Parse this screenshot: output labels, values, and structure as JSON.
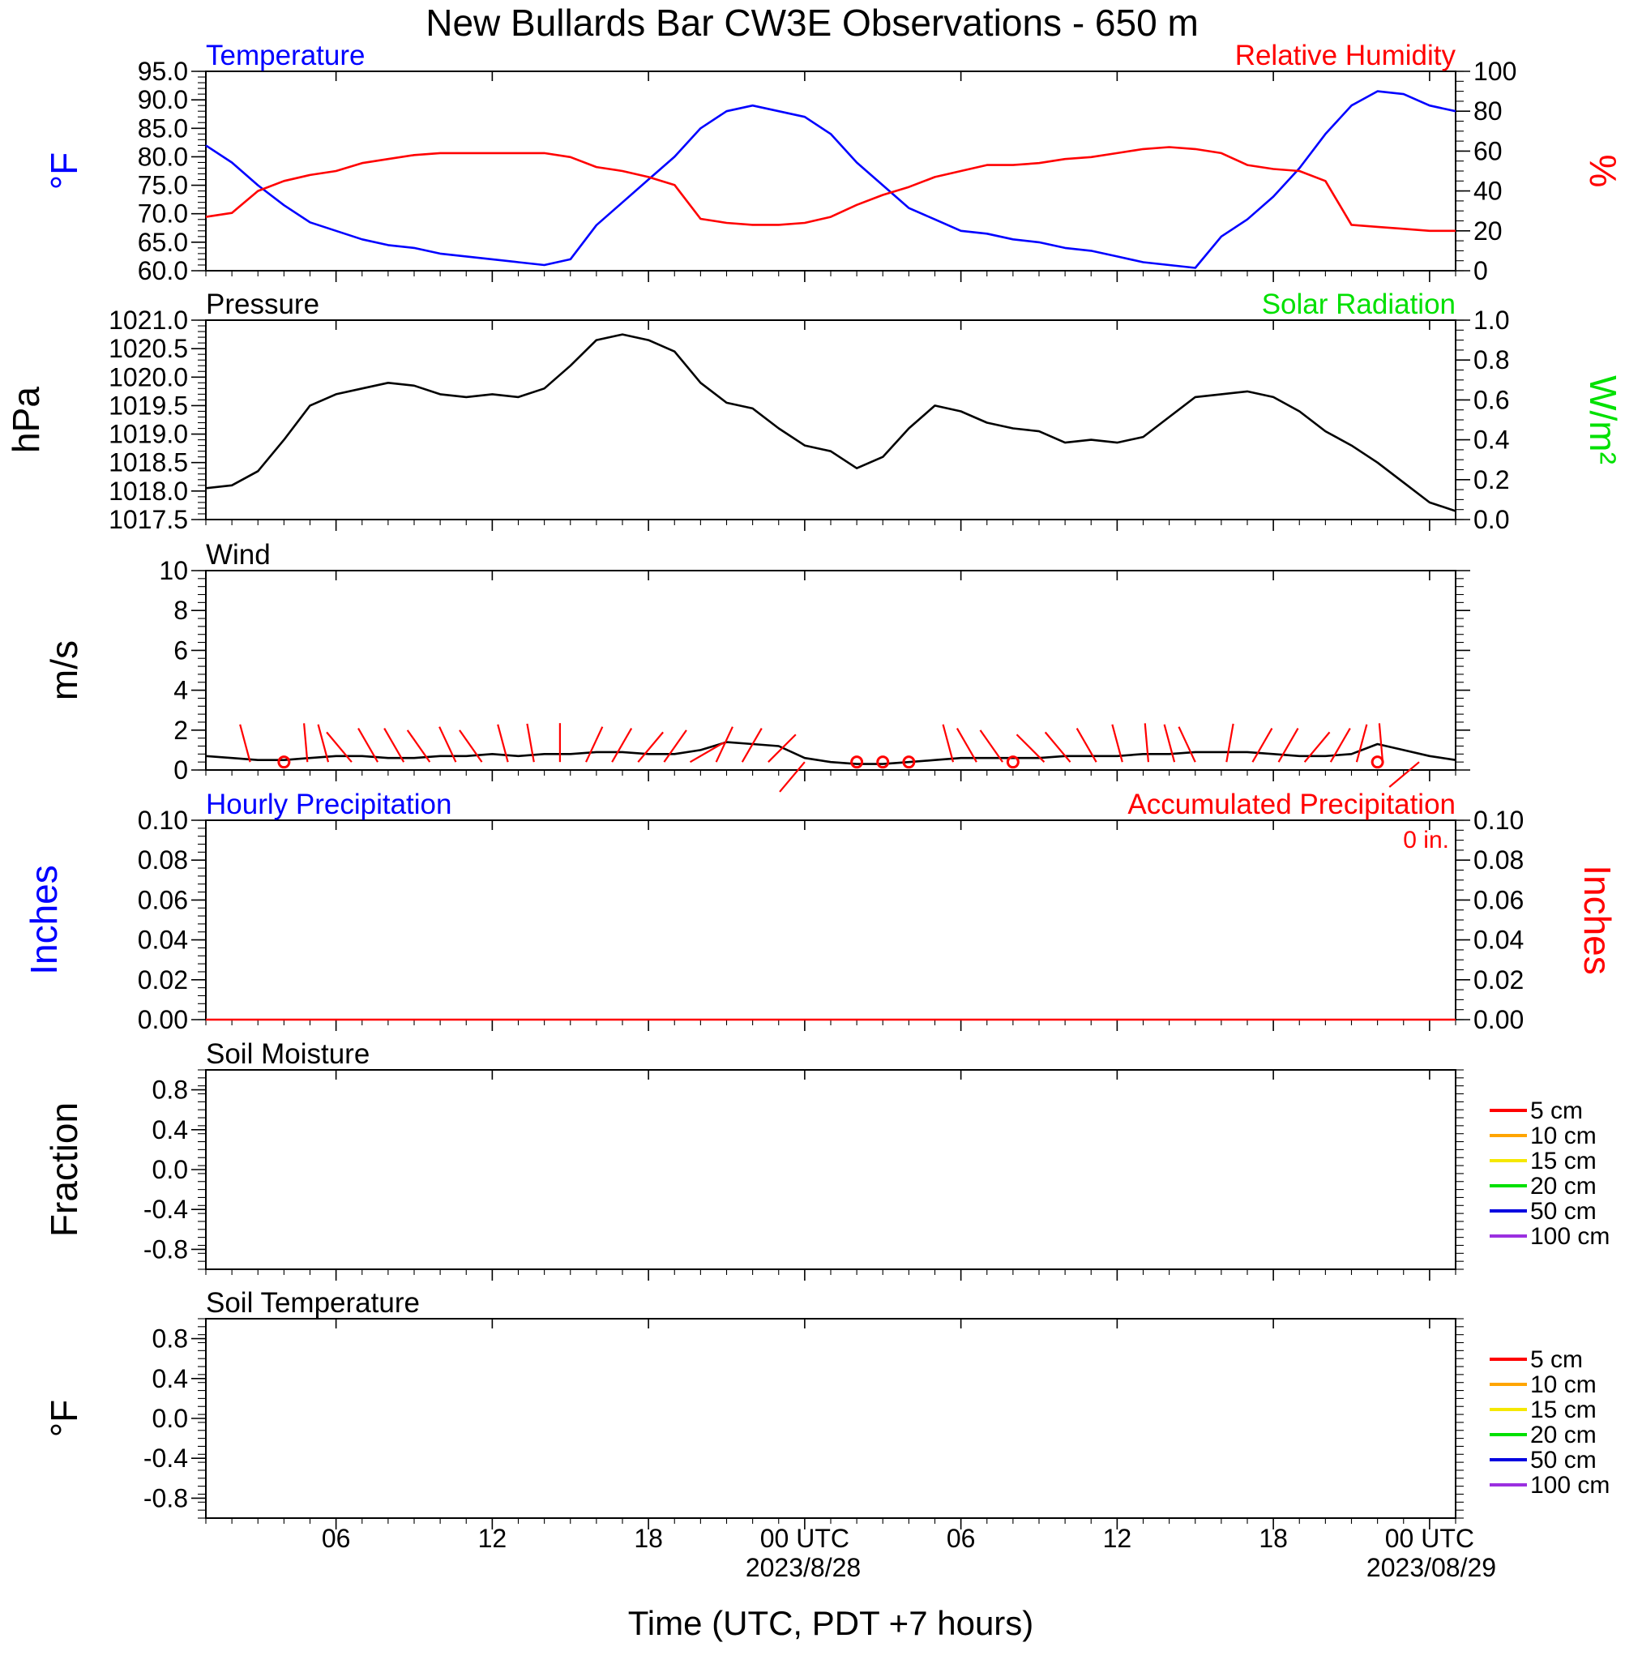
{
  "colors": {
    "blue": "#0000ff",
    "red": "#ff0000",
    "green": "#00e000",
    "black": "#000000",
    "soil": [
      "#ff0000",
      "#ffa500",
      "#f5e800",
      "#00e000",
      "#0000e0",
      "#9b30e0"
    ]
  },
  "header": {
    "title": "New Bullards Bar CW3E Observations - 650 m"
  },
  "footer": {
    "xlabel": "Time (UTC, PDT +7 hours)",
    "date1": "2023/8/28",
    "date2": "2023/08/29"
  },
  "time_axis": {
    "unit": "hours since 2023-08-27 01:00 UTC",
    "start": 1,
    "end": 49,
    "ticks": [
      {
        "t": 6,
        "label": "06"
      },
      {
        "t": 12,
        "label": "12"
      },
      {
        "t": 18,
        "label": "18"
      },
      {
        "t": 24,
        "label": "00 UTC"
      },
      {
        "t": 30,
        "label": "06"
      },
      {
        "t": 36,
        "label": "12"
      },
      {
        "t": 42,
        "label": "18"
      },
      {
        "t": 48,
        "label": "00 UTC"
      }
    ]
  },
  "chart_data": [
    {
      "type": "line",
      "title_left": "Temperature",
      "title_right": "Relative Humidity",
      "ylabel_left": "°F",
      "ylabel_right": "%",
      "ylim_left": [
        60,
        95
      ],
      "ylim_right": [
        0,
        100
      ],
      "yticks_left": [
        "60.0",
        "65.0",
        "70.0",
        "75.0",
        "80.0",
        "85.0",
        "90.0",
        "95.0"
      ],
      "yticks_right": [
        "0",
        "20",
        "40",
        "60",
        "80",
        "100"
      ],
      "series": [
        {
          "name": "Temperature",
          "axis": "left",
          "color": "#0000ff",
          "x": [
            1,
            2,
            3,
            4,
            5,
            6,
            7,
            8,
            9,
            10,
            11,
            12,
            13,
            14,
            15,
            16,
            17,
            18,
            19,
            20,
            21,
            22,
            23,
            24,
            25,
            26,
            27,
            28,
            29,
            30,
            31,
            32,
            33,
            34,
            35,
            36,
            37,
            38,
            39,
            40,
            41,
            42,
            43,
            44,
            45,
            46,
            47,
            48,
            49
          ],
          "y": [
            82.0,
            79.0,
            75.0,
            71.5,
            68.5,
            67.0,
            65.5,
            64.5,
            64.0,
            63.0,
            62.5,
            62.0,
            61.5,
            61.0,
            62.0,
            68.0,
            72.0,
            76.0,
            80.0,
            85.0,
            88.0,
            89.0,
            88.0,
            87.0,
            84.0,
            79.0,
            75.0,
            71.0,
            69.0,
            67.0,
            66.5,
            65.5,
            65.0,
            64.0,
            63.5,
            62.5,
            61.5,
            61.0,
            60.5,
            66.0,
            69.0,
            73.0,
            78.0,
            84.0,
            89.0,
            91.5,
            91.0,
            89.0,
            88.0
          ]
        },
        {
          "name": "Relative Humidity",
          "axis": "right",
          "color": "#ff0000",
          "x": [
            1,
            2,
            3,
            4,
            5,
            6,
            7,
            8,
            9,
            10,
            11,
            12,
            13,
            14,
            15,
            16,
            17,
            18,
            19,
            20,
            21,
            22,
            23,
            24,
            25,
            26,
            27,
            28,
            29,
            30,
            31,
            32,
            33,
            34,
            35,
            36,
            37,
            38,
            39,
            40,
            41,
            42,
            43,
            44,
            45,
            46,
            47,
            48,
            49
          ],
          "y": [
            27,
            29,
            40,
            45,
            48,
            50,
            54,
            56,
            58,
            59,
            59,
            59,
            59,
            59,
            57,
            52,
            50,
            47,
            43,
            26,
            24,
            23,
            23,
            24,
            27,
            33,
            38,
            42,
            47,
            50,
            53,
            53,
            54,
            56,
            57,
            59,
            61,
            62,
            61,
            59,
            53,
            51,
            50,
            45,
            23,
            22,
            21,
            20,
            20
          ]
        }
      ]
    },
    {
      "type": "line",
      "title_left": "Pressure",
      "title_right": "Solar Radiation",
      "ylabel_left": "hPa",
      "ylabel_right": "W/m²",
      "ylim_left": [
        1017.5,
        1021.0
      ],
      "ylim_right": [
        0.0,
        1.0
      ],
      "yticks_left": [
        "1017.5",
        "1018.0",
        "1018.5",
        "1019.0",
        "1019.5",
        "1020.0",
        "1020.5",
        "1021.0"
      ],
      "yticks_right": [
        "0.0",
        "0.2",
        "0.4",
        "0.6",
        "0.8",
        "1.0"
      ],
      "series": [
        {
          "name": "Pressure",
          "axis": "left",
          "color": "#000000",
          "x": [
            1,
            2,
            3,
            4,
            5,
            6,
            7,
            8,
            9,
            10,
            11,
            12,
            13,
            14,
            15,
            16,
            17,
            18,
            19,
            20,
            21,
            22,
            23,
            24,
            25,
            26,
            27,
            28,
            29,
            30,
            31,
            32,
            33,
            34,
            35,
            36,
            37,
            38,
            39,
            40,
            41,
            42,
            43,
            44,
            45,
            46,
            47,
            48,
            49
          ],
          "y": [
            1018.05,
            1018.1,
            1018.35,
            1018.9,
            1019.5,
            1019.7,
            1019.8,
            1019.9,
            1019.85,
            1019.7,
            1019.65,
            1019.7,
            1019.65,
            1019.8,
            1020.2,
            1020.65,
            1020.75,
            1020.65,
            1020.45,
            1019.9,
            1019.55,
            1019.45,
            1019.1,
            1018.8,
            1018.7,
            1018.4,
            1018.6,
            1019.1,
            1019.5,
            1019.4,
            1019.2,
            1019.1,
            1019.05,
            1018.85,
            1018.9,
            1018.85,
            1018.95,
            1019.3,
            1019.65,
            1019.7,
            1019.75,
            1019.65,
            1019.4,
            1019.05,
            1018.8,
            1018.5,
            1018.15,
            1017.8,
            1017.65
          ]
        }
      ]
    },
    {
      "type": "line",
      "title_left": "Wind",
      "ylabel_left": "m/s",
      "ylim_left": [
        0,
        10
      ],
      "yticks_left": [
        "0",
        "2",
        "4",
        "6",
        "8",
        "10"
      ],
      "series": [
        {
          "name": "Wind",
          "axis": "left",
          "color": "#000000",
          "x": [
            1,
            2,
            3,
            4,
            5,
            6,
            7,
            8,
            9,
            10,
            11,
            12,
            13,
            14,
            15,
            16,
            17,
            18,
            19,
            20,
            21,
            22,
            23,
            24,
            25,
            26,
            27,
            28,
            29,
            30,
            31,
            32,
            33,
            34,
            35,
            36,
            37,
            38,
            39,
            40,
            41,
            42,
            43,
            44,
            45,
            46,
            47,
            48,
            49
          ],
          "y": [
            0.7,
            0.6,
            0.5,
            0.5,
            0.6,
            0.7,
            0.7,
            0.6,
            0.6,
            0.7,
            0.7,
            0.8,
            0.7,
            0.8,
            0.8,
            0.9,
            0.9,
            0.8,
            0.8,
            1.0,
            1.4,
            1.3,
            1.2,
            0.6,
            0.4,
            0.3,
            0.3,
            0.4,
            0.5,
            0.6,
            0.6,
            0.6,
            0.6,
            0.7,
            0.7,
            0.7,
            0.8,
            0.8,
            0.9,
            0.9,
            0.9,
            0.8,
            0.7,
            0.7,
            0.8,
            1.3,
            1.0,
            0.7,
            0.5
          ]
        }
      ],
      "barbs": [
        {
          "t": 2.7,
          "dir": 345
        },
        {
          "t": 4.9,
          "dir": 355
        },
        {
          "t": 5.7,
          "dir": 345
        },
        {
          "t": 6.6,
          "dir": 320
        },
        {
          "t": 7.6,
          "dir": 330
        },
        {
          "t": 8.6,
          "dir": 330
        },
        {
          "t": 9.6,
          "dir": 325
        },
        {
          "t": 10.6,
          "dir": 335
        },
        {
          "t": 11.6,
          "dir": 325
        },
        {
          "t": 12.6,
          "dir": 345
        },
        {
          "t": 13.6,
          "dir": 350
        },
        {
          "t": 14.6,
          "dir": 0
        },
        {
          "t": 15.6,
          "dir": 25
        },
        {
          "t": 16.6,
          "dir": 30
        },
        {
          "t": 17.6,
          "dir": 40
        },
        {
          "t": 18.6,
          "dir": 35
        },
        {
          "t": 19.6,
          "dir": 60
        },
        {
          "t": 20.6,
          "dir": 25
        },
        {
          "t": 21.6,
          "dir": 30
        },
        {
          "t": 22.6,
          "dir": 45
        },
        {
          "t": 24.0,
          "dir": 220
        },
        {
          "t": 29.7,
          "dir": 345
        },
        {
          "t": 30.6,
          "dir": 330
        },
        {
          "t": 31.6,
          "dir": 325
        },
        {
          "t": 33.2,
          "dir": 315
        },
        {
          "t": 34.2,
          "dir": 320
        },
        {
          "t": 35.2,
          "dir": 330
        },
        {
          "t": 36.2,
          "dir": 345
        },
        {
          "t": 37.2,
          "dir": 355
        },
        {
          "t": 38.2,
          "dir": 345
        },
        {
          "t": 39.0,
          "dir": 335
        },
        {
          "t": 40.2,
          "dir": 10
        },
        {
          "t": 41.2,
          "dir": 30
        },
        {
          "t": 42.2,
          "dir": 30
        },
        {
          "t": 43.2,
          "dir": 40
        },
        {
          "t": 44.2,
          "dir": 30
        },
        {
          "t": 45.2,
          "dir": 15
        },
        {
          "t": 46.2,
          "dir": 355
        },
        {
          "t": 47.6,
          "dir": 230
        }
      ],
      "calm_markers": [
        4.0,
        26.0,
        27.0,
        28.0,
        32.0,
        46.0
      ]
    },
    {
      "type": "line",
      "title_left": "Hourly Precipitation",
      "title_right": "Accumulated Precipitation",
      "annotation": "0 in.",
      "ylabel_left": "Inches",
      "ylabel_right": "Inches",
      "ylim_left": [
        0.0,
        0.1
      ],
      "ylim_right": [
        0.0,
        0.1
      ],
      "yticks_left": [
        "0.00",
        "0.02",
        "0.04",
        "0.06",
        "0.08",
        "0.10"
      ],
      "yticks_right": [
        "0.00",
        "0.02",
        "0.04",
        "0.06",
        "0.08",
        "0.10"
      ],
      "series": [
        {
          "name": "Accumulated Precipitation",
          "axis": "left",
          "color": "#ff0000",
          "x": [
            1,
            49
          ],
          "y": [
            0,
            0
          ]
        }
      ]
    },
    {
      "type": "line",
      "title_left": "Soil Moisture",
      "ylabel_left": "Fraction",
      "ylim_left": [
        -1.0,
        1.0
      ],
      "yticks_left": [
        "-0.8",
        "-0.4",
        "0.0",
        "0.4",
        "0.8"
      ],
      "series": [],
      "legend": [
        "5 cm",
        "10 cm",
        "15 cm",
        "20 cm",
        "50 cm",
        "100 cm"
      ]
    },
    {
      "type": "line",
      "title_left": "Soil Temperature",
      "ylabel_left": "°F",
      "ylim_left": [
        -1.0,
        1.0
      ],
      "yticks_left": [
        "-0.8",
        "-0.4",
        "0.0",
        "0.4",
        "0.8"
      ],
      "series": [],
      "legend": [
        "5 cm",
        "10 cm",
        "15 cm",
        "20 cm",
        "50 cm",
        "100 cm"
      ]
    }
  ]
}
